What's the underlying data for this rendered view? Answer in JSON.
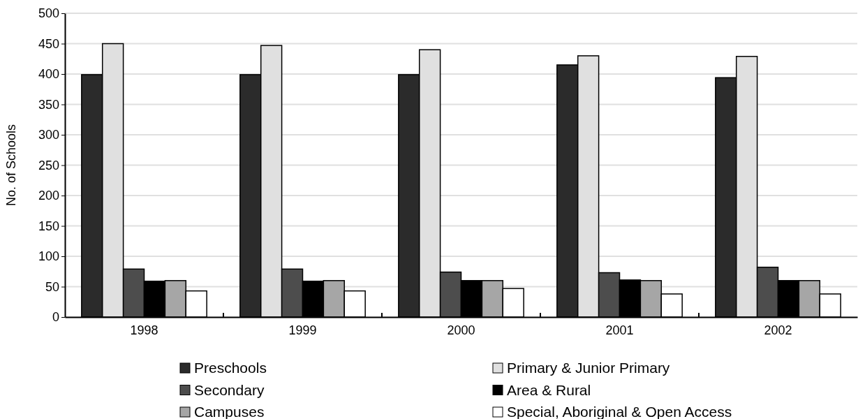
{
  "chart_data": {
    "type": "bar",
    "ylabel": "No. of Schools",
    "categories": [
      "1998",
      "1999",
      "2000",
      "2001",
      "2002"
    ],
    "series": [
      {
        "name": "Preschools",
        "color": "#2b2b2b",
        "values": [
          399,
          399,
          399,
          415,
          394
        ]
      },
      {
        "name": "Primary & Junior Primary",
        "color": "#e0e0e0",
        "values": [
          450,
          447,
          440,
          430,
          429
        ]
      },
      {
        "name": "Secondary",
        "color": "#4d4d4d",
        "values": [
          79,
          79,
          74,
          73,
          82
        ]
      },
      {
        "name": "Area & Rural",
        "color": "#000000",
        "values": [
          59,
          59,
          60,
          61,
          60
        ]
      },
      {
        "name": "Campuses",
        "color": "#a6a6a6",
        "values": [
          60,
          60,
          60,
          60,
          60
        ]
      },
      {
        "name": "Special, Aboriginal & Open Access",
        "color": "#ffffff",
        "values": [
          43,
          43,
          47,
          38,
          38
        ]
      }
    ],
    "ylim": [
      0,
      500
    ],
    "yticks": [
      0,
      50,
      100,
      150,
      200,
      250,
      300,
      350,
      400,
      450,
      500
    ],
    "grid": "y",
    "legend": "bottom"
  }
}
